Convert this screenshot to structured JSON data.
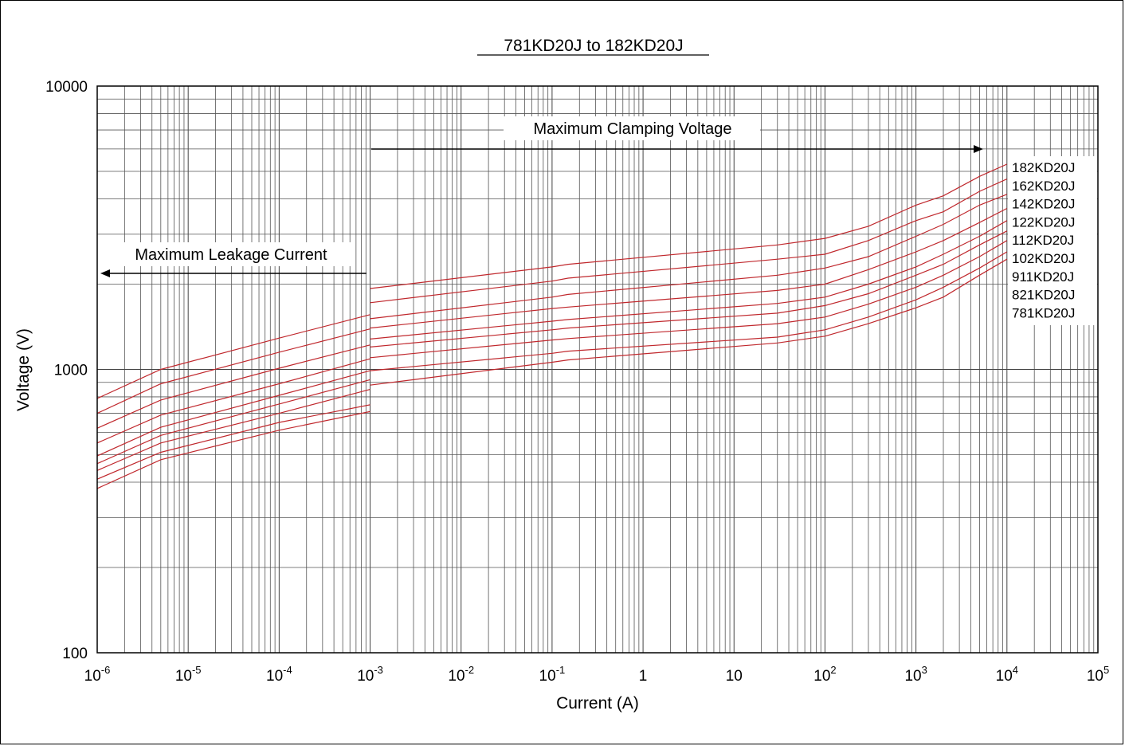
{
  "chart_data": {
    "type": "line",
    "title": "781KD20J to 182KD20J",
    "xlabel": "Current (A)",
    "ylabel": "Voltage (V)",
    "x_scale": "log",
    "y_scale": "log",
    "xlim": [
      1e-06,
      100000
    ],
    "ylim": [
      100,
      10000
    ],
    "grid": true,
    "x_ticks": [
      {
        "base": "10",
        "exp": "-6"
      },
      {
        "base": "10",
        "exp": "-5"
      },
      {
        "base": "10",
        "exp": "-4"
      },
      {
        "base": "10",
        "exp": "-3"
      },
      {
        "base": "10",
        "exp": "-2"
      },
      {
        "base": "10",
        "exp": "-1"
      },
      {
        "base": "1",
        "exp": ""
      },
      {
        "base": "10",
        "exp": ""
      },
      {
        "base": "10",
        "exp": "2"
      },
      {
        "base": "10",
        "exp": "3"
      },
      {
        "base": "10",
        "exp": "4"
      },
      {
        "base": "10",
        "exp": "5"
      }
    ],
    "y_ticks": [
      "100",
      "1000",
      "10000"
    ],
    "annotations": {
      "leakage": "Maximum Leakage Current",
      "clamping": "Maximum Clamping Voltage"
    },
    "line_color": "#c0282d",
    "series": [
      {
        "name": "182KD20J",
        "leakage": {
          "x": [
            1e-06,
            5e-06,
            0.0001,
            0.001
          ],
          "y": [
            790,
            1000,
            1290,
            1560
          ]
        },
        "clamping": {
          "x": [
            0.001,
            0.1,
            0.15,
            30,
            100,
            300,
            1000,
            2000,
            5000,
            10000
          ],
          "y": [
            1930,
            2300,
            2350,
            2750,
            2900,
            3200,
            3800,
            4100,
            4800,
            5300
          ]
        }
      },
      {
        "name": "162KD20J",
        "leakage": {
          "x": [
            1e-06,
            5e-06,
            0.0001,
            0.001
          ],
          "y": [
            700,
            890,
            1150,
            1390
          ]
        },
        "clamping": {
          "x": [
            0.001,
            0.1,
            0.15,
            30,
            100,
            300,
            1000,
            2000,
            5000,
            10000
          ],
          "y": [
            1720,
            2050,
            2100,
            2450,
            2550,
            2850,
            3350,
            3600,
            4250,
            4700
          ]
        }
      },
      {
        "name": "142KD20J",
        "leakage": {
          "x": [
            1e-06,
            5e-06,
            0.0001,
            0.001
          ],
          "y": [
            620,
            780,
            1010,
            1220
          ]
        },
        "clamping": {
          "x": [
            0.001,
            0.1,
            0.15,
            30,
            100,
            300,
            1000,
            2000,
            5000,
            10000
          ],
          "y": [
            1510,
            1800,
            1840,
            2150,
            2280,
            2500,
            2950,
            3250,
            3800,
            4150
          ]
        }
      },
      {
        "name": "122KD20J",
        "leakage": {
          "x": [
            1e-06,
            5e-06,
            0.0001,
            0.001
          ],
          "y": [
            550,
            690,
            890,
            1090
          ]
        },
        "clamping": {
          "x": [
            0.001,
            0.1,
            0.15,
            30,
            100,
            300,
            1000,
            2000,
            5000,
            10000
          ],
          "y": [
            1400,
            1640,
            1660,
            1900,
            2000,
            2250,
            2600,
            2850,
            3300,
            3700
          ]
        }
      },
      {
        "name": "112KD20J",
        "leakage": {
          "x": [
            1e-06,
            5e-06,
            0.0001,
            0.001
          ],
          "y": [
            495,
            625,
            810,
            990
          ]
        },
        "clamping": {
          "x": [
            0.001,
            0.1,
            0.15,
            30,
            100,
            300,
            1000,
            2000,
            5000,
            10000
          ],
          "y": [
            1280,
            1480,
            1500,
            1710,
            1800,
            2000,
            2300,
            2550,
            2950,
            3350
          ]
        }
      },
      {
        "name": "102KD20J",
        "leakage": {
          "x": [
            1e-06,
            5e-06,
            0.0001,
            0.001
          ],
          "y": [
            465,
            585,
            755,
            920
          ]
        },
        "clamping": {
          "x": [
            0.001,
            0.1,
            0.15,
            30,
            100,
            300,
            1000,
            2000,
            5000,
            10000
          ],
          "y": [
            1200,
            1380,
            1400,
            1580,
            1680,
            1850,
            2150,
            2350,
            2750,
            3080
          ]
        }
      },
      {
        "name": "911KD20J",
        "leakage": {
          "x": [
            1e-06,
            5e-06,
            0.0001,
            0.001
          ],
          "y": [
            440,
            550,
            700,
            850
          ]
        },
        "clamping": {
          "x": [
            0.001,
            0.1,
            0.15,
            30,
            100,
            300,
            1000,
            2000,
            5000,
            10000
          ],
          "y": [
            1100,
            1270,
            1285,
            1450,
            1530,
            1700,
            1950,
            2150,
            2500,
            2850
          ]
        }
      },
      {
        "name": "821KD20J",
        "leakage": {
          "x": [
            1e-06,
            5e-06,
            0.0001,
            0.001
          ],
          "y": [
            410,
            510,
            650,
            750
          ]
        },
        "clamping": {
          "x": [
            0.001,
            0.1,
            0.15,
            30,
            100,
            300,
            1000,
            2000,
            5000,
            10000
          ],
          "y": [
            990,
            1140,
            1160,
            1300,
            1380,
            1530,
            1760,
            1950,
            2280,
            2600
          ]
        }
      },
      {
        "name": "781KD20J",
        "leakage": {
          "x": [
            1e-06,
            5e-06,
            0.0001,
            0.001
          ],
          "y": [
            380,
            480,
            610,
            710
          ]
        },
        "clamping": {
          "x": [
            0.001,
            0.1,
            0.15,
            30,
            100,
            300,
            1000,
            2000,
            5000,
            10000
          ],
          "y": [
            880,
            1060,
            1080,
            1240,
            1310,
            1450,
            1650,
            1800,
            2150,
            2450
          ]
        }
      }
    ]
  }
}
